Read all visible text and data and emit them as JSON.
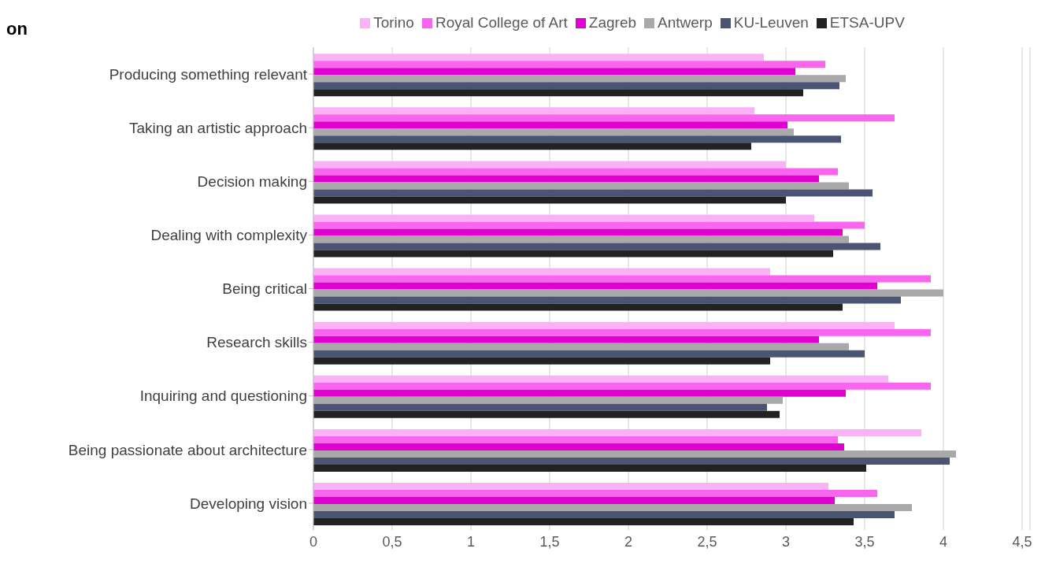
{
  "chart_data": {
    "type": "bar",
    "orientation": "horizontal",
    "title": "on",
    "categories": [
      "Producing something relevant",
      "Taking an artistic approach",
      "Decision making",
      "Dealing with complexity",
      "Being critical",
      "Research skills",
      "Inquiring and questioning",
      "Being passionate about architecture",
      "Developing vision"
    ],
    "series": [
      {
        "name": "Torino",
        "color": "#fbb1f5",
        "values": [
          2.86,
          2.8,
          3.0,
          3.18,
          2.9,
          3.69,
          3.65,
          3.86,
          3.27
        ]
      },
      {
        "name": "Royal College of Art",
        "color": "#f865ee",
        "values": [
          3.25,
          3.69,
          3.33,
          3.5,
          3.92,
          3.92,
          3.92,
          3.33,
          3.58
        ]
      },
      {
        "name": "Zagreb",
        "color": "#e000cf",
        "values": [
          3.06,
          3.01,
          3.21,
          3.36,
          3.58,
          3.21,
          3.38,
          3.37,
          3.31
        ]
      },
      {
        "name": "Antwerp",
        "color": "#a9a9a9",
        "values": [
          3.38,
          3.05,
          3.4,
          3.4,
          4.0,
          3.4,
          2.98,
          4.08,
          3.8
        ]
      },
      {
        "name": "KU-Leuven",
        "color": "#4b5473",
        "values": [
          3.34,
          3.35,
          3.55,
          3.6,
          3.73,
          3.5,
          2.88,
          4.04,
          3.69
        ]
      },
      {
        "name": "ETSA-UPV",
        "color": "#222222",
        "values": [
          3.11,
          2.78,
          3.0,
          3.3,
          3.36,
          2.9,
          2.96,
          3.51,
          3.43
        ]
      }
    ],
    "xlim": [
      0,
      4.55
    ],
    "xticks": [
      0,
      {
        "value": 0.5,
        "label": "0,5"
      },
      1,
      {
        "value": 1.5,
        "label": "1,5"
      },
      2,
      {
        "value": 2.5,
        "label": "2,5"
      },
      3,
      {
        "value": 3.5,
        "label": "3,5"
      },
      4,
      {
        "value": 4.5,
        "label": "4,5"
      }
    ],
    "grid": "x",
    "legend": "top"
  }
}
